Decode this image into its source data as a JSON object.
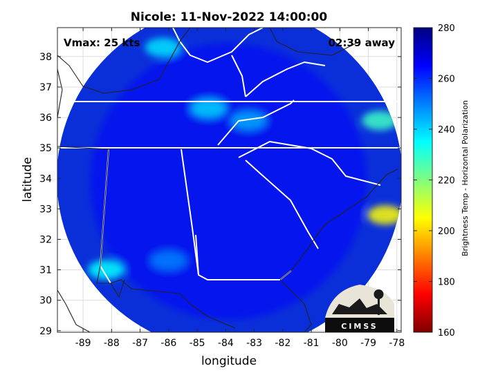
{
  "chart_data": {
    "type": "heatmap",
    "title": "Nicole: 11-Nov-2022 14:00:00",
    "xlabel": "longitude",
    "ylabel": "latitude",
    "xlim": [
      -89.9,
      -77.85
    ],
    "ylim": [
      28.95,
      38.95
    ],
    "xticks": [
      -89,
      -88,
      -87,
      -86,
      -85,
      -84,
      -83,
      -82,
      -81,
      -80,
      -79,
      -78
    ],
    "yticks": [
      29,
      30,
      31,
      32,
      33,
      34,
      35,
      36,
      37,
      38
    ],
    "annotations": {
      "vmax": "Vmax: 25 kts",
      "time_away": "02:39 away"
    },
    "colorbar": {
      "label": "Brightness Temp - Horizontal Polarization",
      "range": [
        160,
        280
      ],
      "ticks": [
        160,
        180,
        200,
        220,
        240,
        260,
        280
      ],
      "colormap": "jet"
    },
    "swath": {
      "center_lon": -83.9,
      "center_lat": 33.9,
      "approx_value": 265
    },
    "features": [
      {
        "lon": -86.2,
        "lat": 38.3,
        "value": 238
      },
      {
        "lon": -84.6,
        "lat": 36.3,
        "value": 240
      },
      {
        "lon": -83.2,
        "lat": 35.9,
        "value": 245
      },
      {
        "lon": -78.6,
        "lat": 35.9,
        "value": 228
      },
      {
        "lon": -78.4,
        "lat": 32.8,
        "value": 205
      },
      {
        "lon": -88.2,
        "lat": 31.0,
        "value": 235
      },
      {
        "lon": -86.0,
        "lat": 31.3,
        "value": 250
      }
    ],
    "grid": true,
    "logo_text": "CIMSS"
  }
}
